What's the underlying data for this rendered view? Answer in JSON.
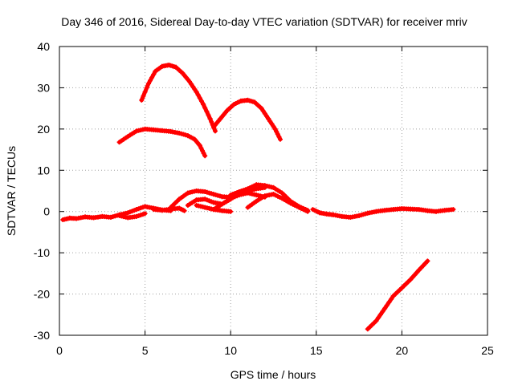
{
  "chart_data": {
    "type": "line",
    "title": "Day 346 of 2016, Sidereal Day-to-day VTEC variation (SDTVAR) for receiver mriv",
    "xlabel": "GPS time / hours",
    "ylabel": "SDTVAR / TECUs",
    "xlim": [
      0,
      25
    ],
    "ylim": [
      -30,
      40
    ],
    "xticks": [
      0,
      5,
      10,
      15,
      20,
      25
    ],
    "yticks": [
      -30,
      -20,
      -10,
      0,
      10,
      20,
      30,
      40
    ],
    "xtick_labels": [
      "0",
      "5",
      "10",
      "15",
      "20",
      "25"
    ],
    "ytick_labels": [
      "-30",
      "-20",
      "-10",
      "0",
      "10",
      "20",
      "30",
      "40"
    ],
    "grid": true,
    "legend": "none",
    "color": "#ff0000",
    "series": [
      {
        "name": "arc-peak-35",
        "x": [
          4.8,
          5.2,
          5.6,
          6.0,
          6.4,
          6.8,
          7.2,
          7.6,
          8.0,
          8.4,
          8.8,
          9.1
        ],
        "y": [
          27,
          31,
          34,
          35.2,
          35.5,
          35,
          33.5,
          31.5,
          29,
          26,
          22.5,
          19.5
        ]
      },
      {
        "name": "arc-peak-27",
        "x": [
          9.0,
          9.4,
          9.8,
          10.2,
          10.6,
          11.0,
          11.4,
          11.8,
          12.2,
          12.6,
          12.9
        ],
        "y": [
          20.5,
          22.5,
          24.5,
          26,
          26.8,
          27,
          26.5,
          25,
          22.5,
          20,
          17.5
        ]
      },
      {
        "name": "arc-20",
        "x": [
          3.5,
          4.0,
          4.5,
          5.0,
          5.5,
          6.0,
          6.5,
          7.0,
          7.5,
          7.9,
          8.2,
          8.5
        ],
        "y": [
          16.8,
          18.2,
          19.5,
          20,
          19.8,
          19.6,
          19.4,
          19,
          18.4,
          17.5,
          16,
          13.5
        ]
      },
      {
        "name": "baseline-left",
        "x": [
          0.2,
          0.6,
          1.0,
          1.5,
          2.0,
          2.5,
          3.0,
          3.5,
          4.0,
          4.5,
          5.0,
          5.5,
          6.0,
          6.5
        ],
        "y": [
          -2,
          -1.6,
          -1.7,
          -1.3,
          -1.5,
          -1.2,
          -1.4,
          -0.8,
          -0.3,
          0.5,
          1.2,
          0.8,
          0.4,
          0.2
        ]
      },
      {
        "name": "baseline-left-lower",
        "x": [
          3.5,
          4.0,
          4.5,
          5.0
        ],
        "y": [
          -1.0,
          -1.5,
          -1.2,
          -0.5
        ]
      },
      {
        "name": "baseline-mid",
        "x": [
          5.5,
          6.0,
          6.5,
          7.0,
          7.3
        ],
        "y": [
          0.5,
          0.3,
          0.6,
          0.8,
          0.2
        ]
      },
      {
        "name": "hump-a",
        "x": [
          6.5,
          7.0,
          7.5,
          8.0,
          8.5,
          9.0,
          9.5,
          10.0,
          10.5,
          11.0,
          11.5,
          12.0
        ],
        "y": [
          1,
          3,
          4.5,
          5,
          4.8,
          4.2,
          3.6,
          3.5,
          4.2,
          5,
          5.5,
          5.8
        ]
      },
      {
        "name": "hump-b",
        "x": [
          7.5,
          8.0,
          8.5,
          9.0,
          9.5,
          10.0,
          10.5,
          11.0
        ],
        "y": [
          1.5,
          2.8,
          3.0,
          2.2,
          1.8,
          3.0,
          4.5,
          5.2
        ]
      },
      {
        "name": "hump-c",
        "x": [
          8.0,
          8.5,
          9.0,
          9.5,
          10.0
        ],
        "y": [
          1.5,
          1.0,
          0.5,
          0.2,
          0.0
        ]
      },
      {
        "name": "hump-d",
        "x": [
          10.0,
          10.5,
          11.0,
          11.5,
          12.0,
          12.5,
          13.0,
          13.5,
          14.0,
          14.5
        ],
        "y": [
          4.0,
          4.8,
          5.5,
          6.5,
          6.3,
          5.8,
          4.5,
          2.5,
          1.2,
          0.3
        ]
      },
      {
        "name": "hump-e",
        "x": [
          11.0,
          11.5,
          12.0,
          12.5,
          13.0,
          13.5,
          14.0,
          14.5
        ],
        "y": [
          1.0,
          2.5,
          3.8,
          4.2,
          3.2,
          2.0,
          1.0,
          0.0
        ]
      },
      {
        "name": "hump-f",
        "x": [
          9.0,
          9.5,
          10.0,
          10.5,
          11.0,
          11.5,
          12.0
        ],
        "y": [
          0.5,
          1.8,
          3.2,
          4.0,
          4.5,
          4.0,
          3.5
        ]
      },
      {
        "name": "baseline-right",
        "x": [
          14.8,
          15.2,
          15.6,
          16.0,
          16.5,
          17.0,
          17.5,
          18.0,
          18.5,
          19.0,
          19.5,
          20.0,
          20.5,
          21.0,
          21.5,
          22.0,
          22.5,
          23.0
        ],
        "y": [
          0.5,
          -0.3,
          -0.6,
          -0.8,
          -1.2,
          -1.4,
          -1.0,
          -0.4,
          0.0,
          0.3,
          0.5,
          0.7,
          0.6,
          0.5,
          0.2,
          0.0,
          0.3,
          0.5
        ]
      },
      {
        "name": "descending-line",
        "x": [
          18.0,
          18.5,
          19.0,
          19.5,
          20.0,
          20.5,
          21.0,
          21.5
        ],
        "y": [
          -28.5,
          -26.5,
          -23.5,
          -20.5,
          -18.5,
          -16.5,
          -14.2,
          -12
        ]
      }
    ]
  }
}
